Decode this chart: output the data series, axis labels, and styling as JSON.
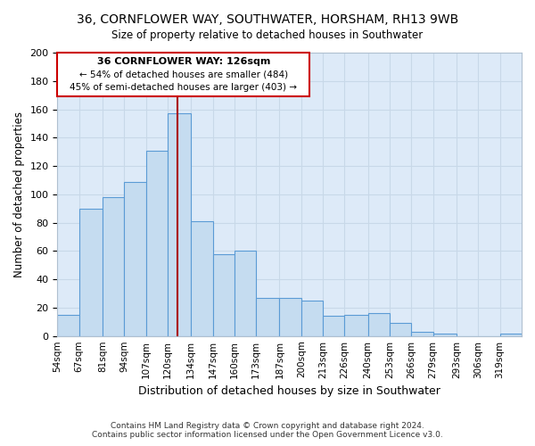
{
  "title": "36, CORNFLOWER WAY, SOUTHWATER, HORSHAM, RH13 9WB",
  "subtitle": "Size of property relative to detached houses in Southwater",
  "xlabel": "Distribution of detached houses by size in Southwater",
  "ylabel": "Number of detached properties",
  "footer_line1": "Contains HM Land Registry data © Crown copyright and database right 2024.",
  "footer_line2": "Contains public sector information licensed under the Open Government Licence v3.0.",
  "bar_labels": [
    "54sqm",
    "67sqm",
    "81sqm",
    "94sqm",
    "107sqm",
    "120sqm",
    "134sqm",
    "147sqm",
    "160sqm",
    "173sqm",
    "187sqm",
    "200sqm",
    "213sqm",
    "226sqm",
    "240sqm",
    "253sqm",
    "266sqm",
    "279sqm",
    "293sqm",
    "306sqm",
    "319sqm"
  ],
  "bar_values": [
    15,
    90,
    98,
    109,
    131,
    157,
    81,
    58,
    60,
    27,
    27,
    25,
    14,
    15,
    16,
    9,
    3,
    2,
    0,
    0,
    2
  ],
  "bar_color": "#c5dcf0",
  "bar_edge_color": "#5b9bd5",
  "annotation_title": "36 CORNFLOWER WAY: 126sqm",
  "annotation_line1": "← 54% of detached houses are smaller (484)",
  "annotation_line2": "45% of semi-detached houses are larger (403) →",
  "annotation_box_edge": "#cc0000",
  "vline_color": "#aa0000",
  "ylim": [
    0,
    200
  ],
  "yticks": [
    0,
    20,
    40,
    60,
    80,
    100,
    120,
    140,
    160,
    180,
    200
  ],
  "grid_color": "#c8d8e8",
  "bg_color": "#ddeaf8",
  "bin_edges": [
    54,
    67,
    81,
    94,
    107,
    120,
    134,
    147,
    160,
    173,
    187,
    200,
    213,
    226,
    240,
    253,
    266,
    279,
    293,
    306,
    319,
    332
  ]
}
